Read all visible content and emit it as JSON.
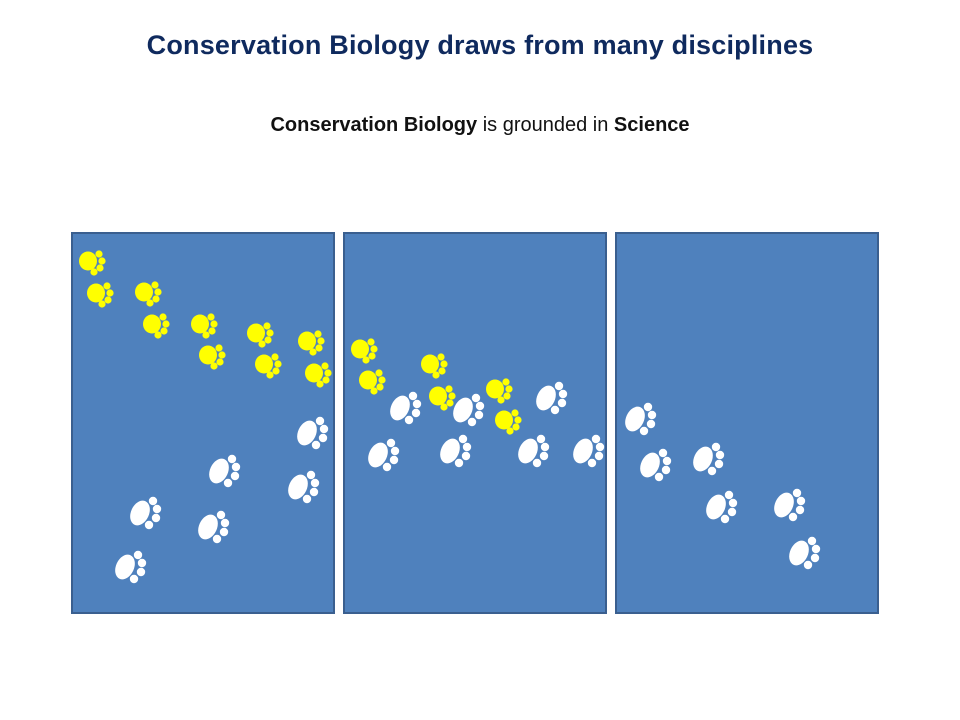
{
  "slide": {
    "title": "Conservation Biology draws from many disciplines",
    "subtitle": {
      "part1_bold": "Conservation Biology",
      "part2": " is grounded in ",
      "part3_bold": "Science"
    }
  },
  "panels": [
    {
      "name": "panel-1",
      "color": "#4f81bd"
    },
    {
      "name": "panel-2",
      "color": "#4f81bd"
    },
    {
      "name": "panel-3",
      "color": "#4f81bd"
    }
  ],
  "footprints": {
    "yellow_color": "#ffff00",
    "white_color": "#ffffff",
    "yellow_icon": "paw-print-icon",
    "white_icon": "paw-print-icon"
  }
}
